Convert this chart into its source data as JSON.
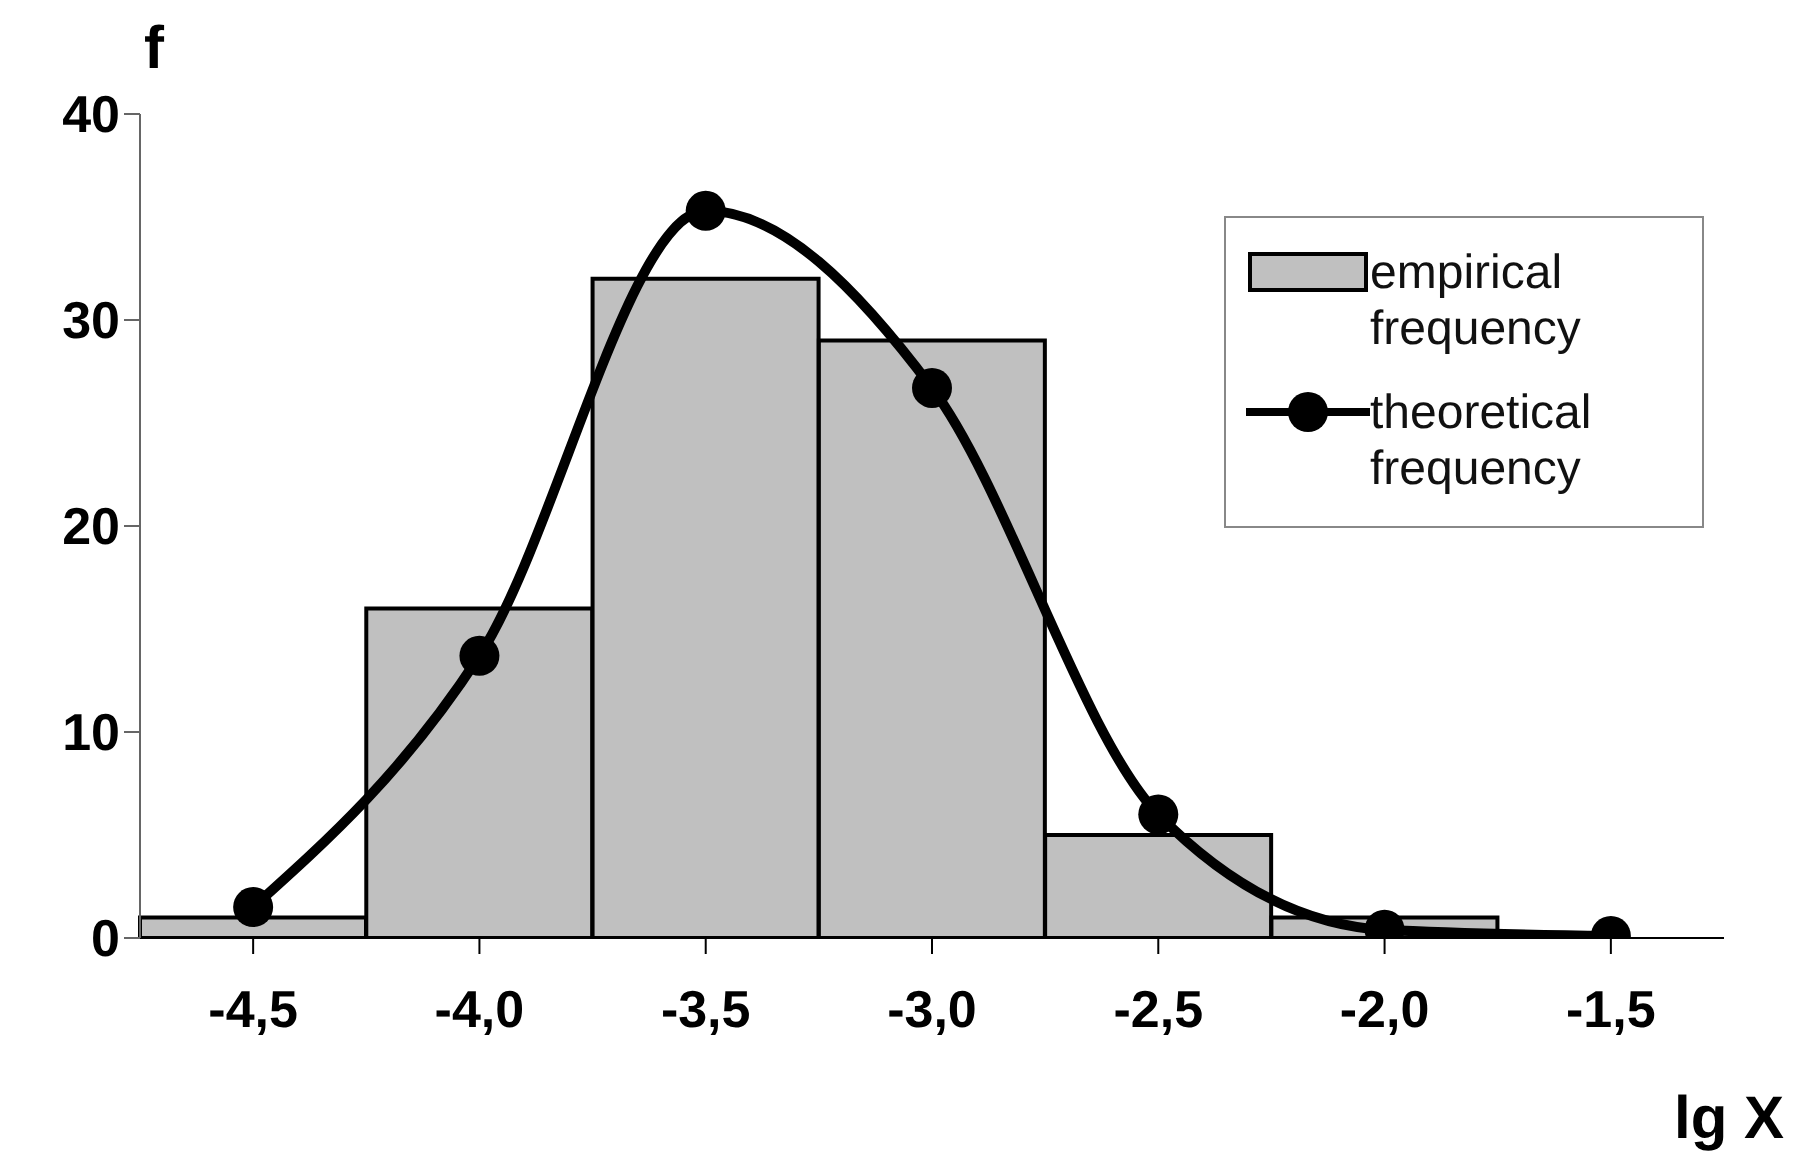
{
  "chart_data": {
    "type": "bar",
    "xlabel": "lg X",
    "ylabel": "f",
    "categories": [
      "-4,5",
      "-4,0",
      "-3,5",
      "-3,0",
      "-2,5",
      "-2,0",
      "-1,5"
    ],
    "series": [
      {
        "name": "empirical frequency",
        "color": "#c0c0c0",
        "values": [
          1,
          16,
          32,
          29,
          5,
          1,
          null
        ]
      },
      {
        "name": "theoretical frequency",
        "type": "line",
        "color": "#000000",
        "marker": "circle",
        "values": [
          1.5,
          13.7,
          35.3,
          26.7,
          6,
          0.4,
          0.1
        ]
      }
    ],
    "ylim": [
      0,
      40
    ],
    "yticks": [
      0,
      10,
      20,
      30,
      40
    ],
    "legend": "top right"
  }
}
